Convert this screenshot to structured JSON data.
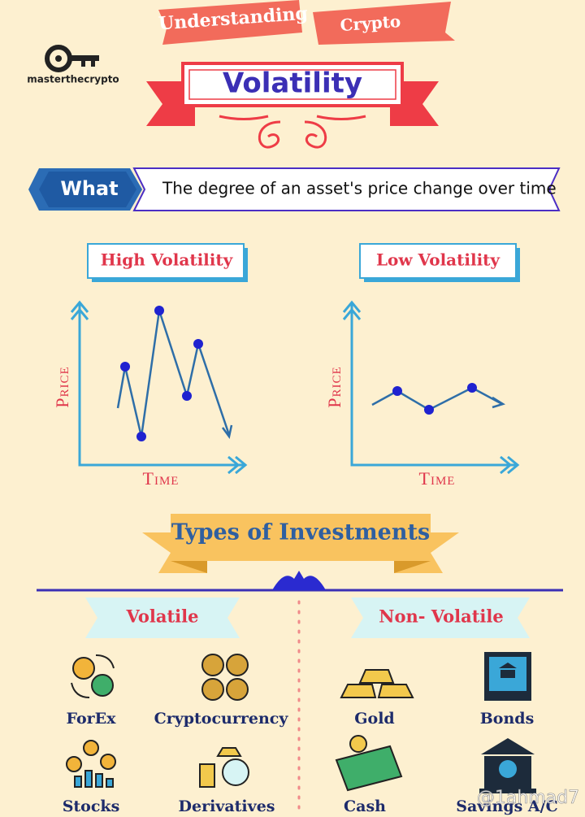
{
  "header": {
    "banner_left": "Understanding",
    "banner_right": "Crypto",
    "title": "Volatility",
    "logo": "masterthecrypto"
  },
  "definition": {
    "label": "What",
    "text": "The degree of an asset's price change over time"
  },
  "charts": [
    {
      "title": "High Volatility",
      "y_label": "Price",
      "x_label": "Time"
    },
    {
      "title": "Low Volatility",
      "y_label": "Price",
      "x_label": "Time"
    }
  ],
  "types": {
    "title": "Types of Investments",
    "groups": [
      {
        "title": "Volatile",
        "items": [
          "ForEx",
          "Cryptocurrency",
          "Stocks",
          "Derivatives"
        ]
      },
      {
        "title": "Non- Volatile",
        "items": [
          "Gold",
          "Bonds",
          "Cash",
          "Savings A/C"
        ]
      }
    ]
  },
  "watermark": "@1ahmad7"
}
